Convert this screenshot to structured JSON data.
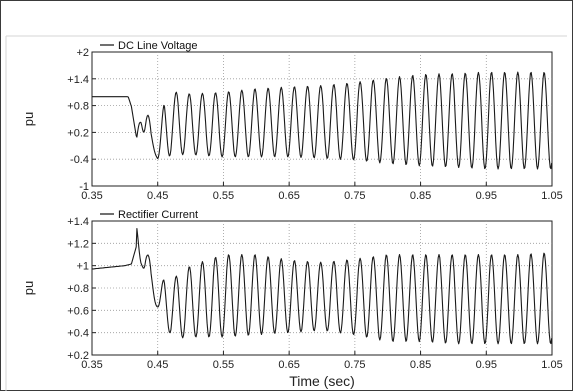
{
  "chart_data": [
    {
      "type": "line",
      "title": "",
      "xlabel": "",
      "ylabel": "pu",
      "legend": [
        "DC Line Voltage"
      ],
      "legend_position": "top-left",
      "xlim": [
        0.35,
        1.05
      ],
      "ylim": [
        -1,
        2
      ],
      "xticks": [
        "0.35",
        "0.45",
        "0.55",
        "0.65",
        "0.75",
        "0.85",
        "0.95",
        "1.05"
      ],
      "yticks": [
        "-1",
        "-0.4",
        "+0.2",
        "+0.8",
        "+1.4",
        "+2"
      ],
      "grid": true,
      "series": [
        {
          "name": "DC Line Voltage",
          "color": "#1a1a1a",
          "x": [
            0.35,
            0.405,
            0.41,
            0.418,
            0.425,
            0.432,
            0.44,
            0.45,
            0.46,
            0.48,
            0.5,
            0.55,
            0.6,
            0.65,
            0.7,
            0.75,
            0.8,
            0.85,
            0.9,
            0.95,
            1.0,
            1.05
          ],
          "y": [
            1.0,
            1.0,
            0.78,
            0.05,
            0.85,
            1.05,
            0.2,
            -0.35,
            0.95,
            1.12,
            1.06,
            1.1,
            1.18,
            1.22,
            1.25,
            1.32,
            1.42,
            1.5,
            1.52,
            1.55,
            1.55,
            1.55
          ],
          "y_min_envelope": [
            1.0,
            1.0,
            0.78,
            0.05,
            0.3,
            0.1,
            -0.1,
            -0.4,
            -0.35,
            -0.3,
            -0.3,
            -0.35,
            -0.35,
            -0.35,
            -0.38,
            -0.42,
            -0.5,
            -0.55,
            -0.58,
            -0.62,
            -0.62,
            -0.62
          ]
        }
      ]
    },
    {
      "type": "line",
      "title": "",
      "xlabel": "Time (sec)",
      "ylabel": "pu",
      "legend": [
        "Rectifier Current"
      ],
      "legend_position": "top-left",
      "xlim": [
        0.35,
        1.05
      ],
      "ylim": [
        0.2,
        1.4
      ],
      "xticks": [
        "0.35",
        "0.45",
        "0.55",
        "0.65",
        "0.75",
        "0.85",
        "0.95",
        "1.05"
      ],
      "yticks": [
        "+0.2",
        "+0.4",
        "+0.6",
        "+0.8",
        "+1",
        "+1.2",
        "+1.4"
      ],
      "grid": true,
      "series": [
        {
          "name": "Rectifier Current",
          "color": "#1a1a1a",
          "x": [
            0.35,
            0.4,
            0.41,
            0.418,
            0.425,
            0.432,
            0.44,
            0.45,
            0.46,
            0.47,
            0.48,
            0.5,
            0.55,
            0.6,
            0.65,
            0.7,
            0.75,
            0.8,
            0.85,
            0.9,
            0.95,
            1.0,
            1.05
          ],
          "y": [
            0.97,
            1.0,
            1.03,
            1.35,
            1.06,
            1.28,
            0.95,
            0.72,
            0.9,
            0.85,
            0.92,
            1.0,
            1.1,
            1.1,
            1.05,
            1.03,
            1.06,
            1.1,
            1.1,
            1.1,
            1.1,
            1.1,
            1.12
          ],
          "y_min_envelope": [
            0.97,
            1.0,
            1.0,
            1.02,
            1.0,
            0.95,
            0.72,
            0.62,
            0.48,
            0.38,
            0.35,
            0.36,
            0.36,
            0.38,
            0.4,
            0.42,
            0.38,
            0.32,
            0.32,
            0.3,
            0.3,
            0.3,
            0.3
          ]
        }
      ]
    }
  ]
}
